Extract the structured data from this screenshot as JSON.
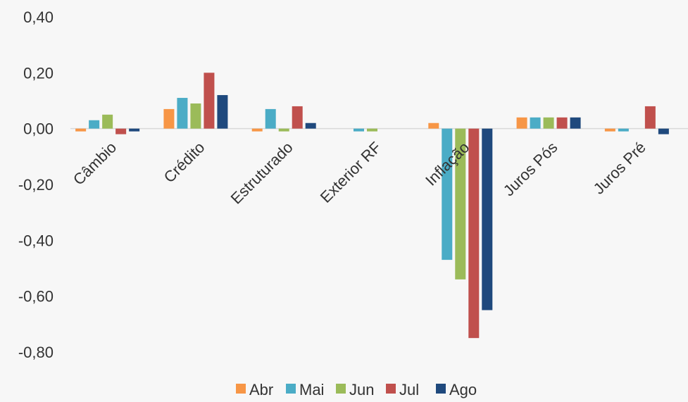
{
  "chart_data": {
    "type": "bar",
    "title": "",
    "xlabel": "",
    "ylabel": "",
    "categories": [
      "Câmbio",
      "Crédito",
      "Estruturado",
      "Exterior RF",
      "Inflação",
      "Juros Pós",
      "Juros Pré"
    ],
    "series": [
      {
        "name": "Abr",
        "color": "#f79646",
        "values": [
          -0.01,
          0.07,
          -0.01,
          0.0,
          0.02,
          0.04,
          -0.01
        ]
      },
      {
        "name": "Mai",
        "color": "#4bacc6",
        "values": [
          0.03,
          0.11,
          0.07,
          -0.01,
          -0.47,
          0.04,
          -0.01
        ]
      },
      {
        "name": "Jun",
        "color": "#9bbb59",
        "values": [
          0.05,
          0.09,
          -0.01,
          -0.01,
          -0.54,
          0.04,
          0.0
        ]
      },
      {
        "name": "Jul",
        "color": "#c0504d",
        "values": [
          -0.02,
          0.2,
          0.08,
          0.0,
          -0.75,
          0.04,
          0.08
        ]
      },
      {
        "name": "Ago",
        "color": "#1f497d",
        "values": [
          -0.01,
          0.12,
          0.02,
          0.0,
          -0.65,
          0.04,
          -0.02
        ]
      }
    ],
    "ylim": [
      -0.8,
      0.4
    ],
    "yticks": [
      "0,40",
      "0,20",
      "0,00",
      "-0,20",
      "-0,40",
      "-0,60",
      "-0,80"
    ],
    "ytick_values": [
      0.4,
      0.2,
      0.0,
      -0.2,
      -0.4,
      -0.6,
      -0.8
    ],
    "grid": false,
    "legend_position": "bottom"
  }
}
